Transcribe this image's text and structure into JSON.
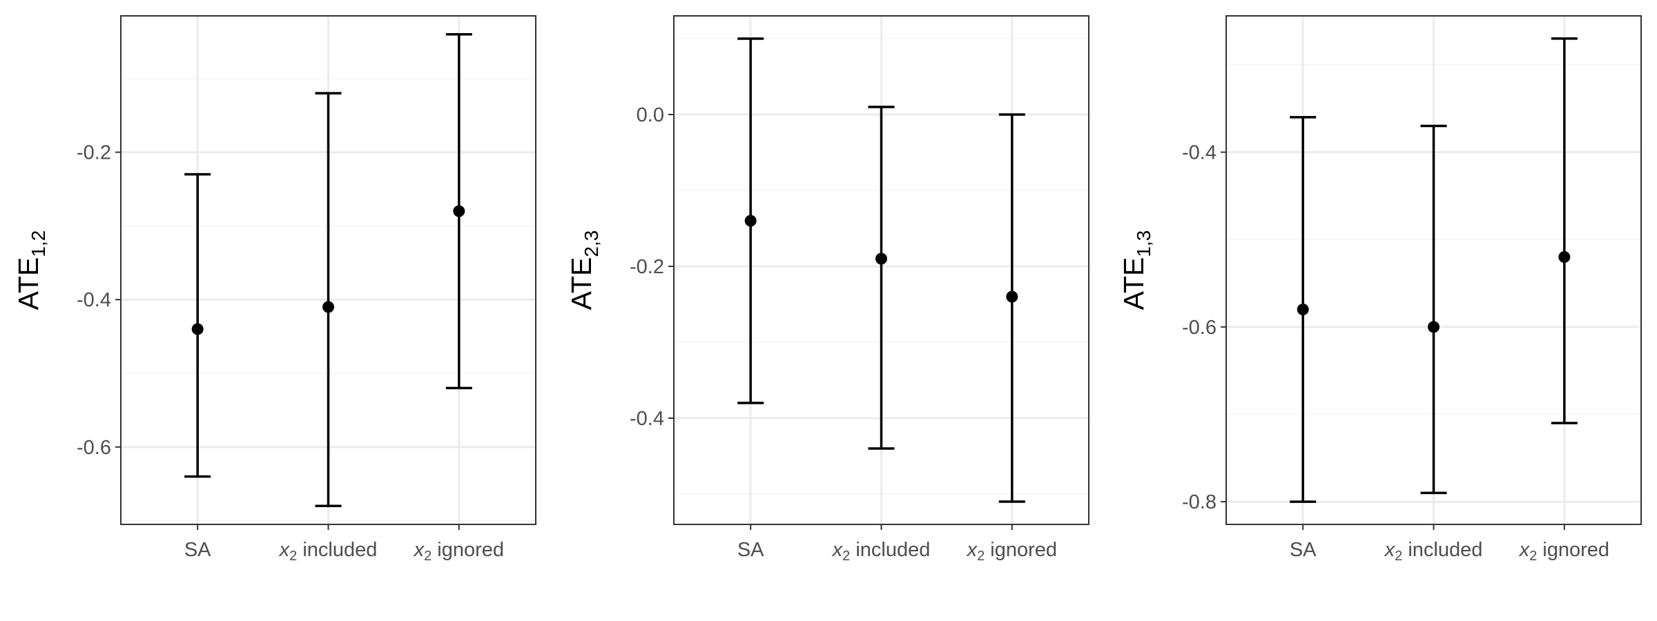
{
  "chart_data": [
    {
      "type": "errorbar",
      "ylabel": "ATE",
      "ylabel_subscript": "1,2",
      "categories": [
        {
          "label": "SA"
        },
        {
          "italic": "x",
          "sub": "2",
          "rest": " included"
        },
        {
          "italic": "x",
          "sub": "2",
          "rest": " ignored"
        }
      ],
      "estimates": [
        -0.44,
        -0.41,
        -0.28
      ],
      "lower": [
        -0.64,
        -0.68,
        -0.52
      ],
      "upper": [
        -0.23,
        -0.12,
        -0.04
      ],
      "yticks": [
        -0.6,
        -0.4,
        -0.2
      ],
      "ytick_labels": [
        "-0.6",
        "-0.4",
        "-0.2"
      ],
      "ylim": [
        -0.705,
        -0.015
      ],
      "grid": true
    },
    {
      "type": "errorbar",
      "ylabel": "ATE",
      "ylabel_subscript": "2,3",
      "categories": [
        {
          "label": "SA"
        },
        {
          "italic": "x",
          "sub": "2",
          "rest": " included"
        },
        {
          "italic": "x",
          "sub": "2",
          "rest": " ignored"
        }
      ],
      "estimates": [
        -0.14,
        -0.19,
        -0.24
      ],
      "lower": [
        -0.38,
        -0.44,
        -0.51
      ],
      "upper": [
        0.1,
        0.01,
        0.0
      ],
      "yticks": [
        -0.4,
        -0.2,
        0.0
      ],
      "ytick_labels": [
        "-0.4",
        "-0.2",
        "0.0"
      ],
      "ylim": [
        -0.54,
        0.13
      ],
      "grid": true
    },
    {
      "type": "errorbar",
      "ylabel": "ATE",
      "ylabel_subscript": "1,3",
      "categories": [
        {
          "label": "SA"
        },
        {
          "italic": "x",
          "sub": "2",
          "rest": " included"
        },
        {
          "italic": "x",
          "sub": "2",
          "rest": " ignored"
        }
      ],
      "estimates": [
        -0.58,
        -0.6,
        -0.52
      ],
      "lower": [
        -0.8,
        -0.79,
        -0.71
      ],
      "upper": [
        -0.36,
        -0.37,
        -0.27
      ],
      "yticks": [
        -0.8,
        -0.6,
        -0.4
      ],
      "ytick_labels": [
        "-0.8",
        "-0.6",
        "-0.4"
      ],
      "ylim": [
        -0.826,
        -0.244
      ],
      "grid": true
    }
  ],
  "colors": {
    "panel_border": "#333333",
    "grid_major": "#ebebeb",
    "grid_minor": "#f4f4f4",
    "marks": "#000000",
    "tick_text": "#4d4d4d"
  }
}
